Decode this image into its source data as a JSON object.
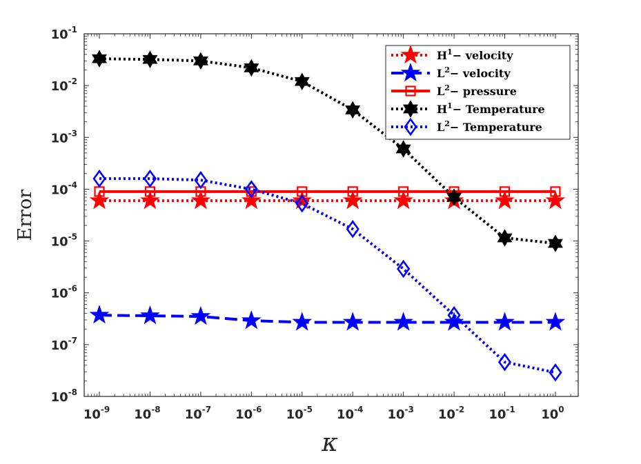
{
  "chart_data": {
    "type": "line",
    "title": "",
    "xlabel": "κ",
    "ylabel": "Error",
    "xscale": "log",
    "yscale": "log",
    "x": [
      1e-09,
      1e-08,
      1e-07,
      1e-06,
      1e-05,
      0.0001,
      0.001,
      0.01,
      0.1,
      1
    ],
    "xlim_exp": [
      -9.3,
      0.45
    ],
    "ylim_exp": [
      -8,
      -1
    ],
    "x_tick_labels": [
      {
        "base": "10",
        "exp": "-9"
      },
      {
        "base": "10",
        "exp": "-8"
      },
      {
        "base": "10",
        "exp": "-7"
      },
      {
        "base": "10",
        "exp": "-6"
      },
      {
        "base": "10",
        "exp": "-5"
      },
      {
        "base": "10",
        "exp": "-4"
      },
      {
        "base": "10",
        "exp": "-3"
      },
      {
        "base": "10",
        "exp": "-2"
      },
      {
        "base": "10",
        "exp": "-1"
      },
      {
        "base": "10",
        "exp": "0"
      }
    ],
    "y_tick_labels": [
      {
        "base": "10",
        "exp": "-8"
      },
      {
        "base": "10",
        "exp": "-7"
      },
      {
        "base": "10",
        "exp": "-6"
      },
      {
        "base": "10",
        "exp": "-5"
      },
      {
        "base": "10",
        "exp": "-4"
      },
      {
        "base": "10",
        "exp": "-3"
      },
      {
        "base": "10",
        "exp": "-2"
      },
      {
        "base": "10",
        "exp": "-1"
      }
    ],
    "legend_position": "top-right",
    "series": [
      {
        "name": "H¹− velocity",
        "legend_base": "H",
        "legend_sup": "1",
        "legend_rest": "− velocity",
        "color": "#ff0000",
        "line": "dotted",
        "marker": "star",
        "marker_fill": "#ff0000",
        "values": [
          6e-05,
          6e-05,
          6e-05,
          6e-05,
          6e-05,
          6e-05,
          6e-05,
          6e-05,
          6e-05,
          6e-05
        ]
      },
      {
        "name": "L²− velocity",
        "legend_base": "L",
        "legend_sup": "2",
        "legend_rest": "− velocity",
        "color": "#0000ff",
        "line": "dashed",
        "marker": "star",
        "marker_fill": "#0000ff",
        "values": [
          3.7e-07,
          3.6e-07,
          3.5e-07,
          2.9e-07,
          2.7e-07,
          2.7e-07,
          2.7e-07,
          2.7e-07,
          2.7e-07,
          2.7e-07
        ]
      },
      {
        "name": "L²− pressure",
        "legend_base": "L",
        "legend_sup": "2",
        "legend_rest": "− pressure",
        "color": "#ff0000",
        "line": "solid",
        "marker": "square",
        "marker_fill": "none",
        "values": [
          9e-05,
          9e-05,
          9e-05,
          9e-05,
          9e-05,
          9e-05,
          9e-05,
          9e-05,
          9e-05,
          9e-05
        ]
      },
      {
        "name": "H¹− Temperature",
        "legend_base": "H",
        "legend_sup": "1",
        "legend_rest": "− Temperature",
        "color": "#000000",
        "line": "dotted",
        "marker": "hexagram",
        "marker_fill": "#000000",
        "values": [
          0.033,
          0.032,
          0.03,
          0.022,
          0.012,
          0.0034,
          0.0006,
          7e-05,
          1.15e-05,
          9e-06
        ]
      },
      {
        "name": "L²− Temperature",
        "legend_base": "L",
        "legend_sup": "2",
        "legend_rest": "− Temperature",
        "color": "#0000ff",
        "line": "dotted",
        "marker": "diamond",
        "marker_fill": "none",
        "values": [
          0.00016,
          0.00016,
          0.00015,
          0.0001,
          5.3e-05,
          1.7e-05,
          2.9e-06,
          3.7e-07,
          4.6e-08,
          2.9e-08
        ]
      }
    ]
  }
}
